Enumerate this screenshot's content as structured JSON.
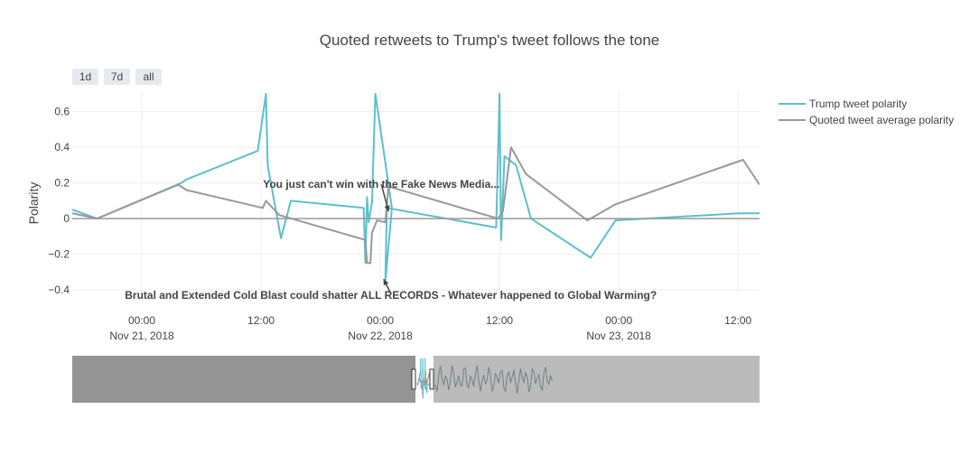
{
  "chart_data": {
    "type": "line",
    "title": "Quoted retweets to Trump's tweet follows the tone",
    "ylabel": "Polarity",
    "xlabel": "",
    "ylim": [
      -0.42,
      0.72
    ],
    "xlim": [
      "2018-11-20 17:00",
      "2018-11-23 14:10"
    ],
    "grid": true,
    "legend_position": "top-right",
    "range_buttons": [
      "1d",
      "7d",
      "all"
    ],
    "y_ticks": [
      {
        "value": 0.6,
        "label": "0.6"
      },
      {
        "value": 0.4,
        "label": "0.4"
      },
      {
        "value": 0.2,
        "label": "0.2"
      },
      {
        "value": 0,
        "label": "0"
      },
      {
        "value": -0.2,
        "label": "−0.2"
      },
      {
        "value": -0.4,
        "label": "−0.4"
      }
    ],
    "x_ticks": [
      {
        "value": "2018-11-21 00:00",
        "time": "00:00",
        "date": "Nov 21, 2018"
      },
      {
        "value": "2018-11-21 12:00",
        "time": "12:00",
        "date": ""
      },
      {
        "value": "2018-11-22 00:00",
        "time": "00:00",
        "date": "Nov 22, 2018"
      },
      {
        "value": "2018-11-22 12:00",
        "time": "12:00",
        "date": ""
      },
      {
        "value": "2018-11-23 00:00",
        "time": "00:00",
        "date": "Nov 23, 2018"
      },
      {
        "value": "2018-11-23 12:00",
        "time": "12:00",
        "date": ""
      }
    ],
    "series": [
      {
        "name": "Trump tweet polarity",
        "color": "#5bc0cf",
        "points": [
          [
            "2018-11-20 17:00",
            0.05
          ],
          [
            "2018-11-20 19:30",
            0.0
          ],
          [
            "2018-11-21 04:00",
            0.2
          ],
          [
            "2018-11-21 04:30",
            0.22
          ],
          [
            "2018-11-21 11:40",
            0.38
          ],
          [
            "2018-11-21 12:30",
            0.7
          ],
          [
            "2018-11-21 12:40",
            0.3
          ],
          [
            "2018-11-21 14:00",
            -0.11
          ],
          [
            "2018-11-21 15:00",
            0.1
          ],
          [
            "2018-11-21 22:20",
            0.06
          ],
          [
            "2018-11-21 22:30",
            -0.25
          ],
          [
            "2018-11-21 22:40",
            0.12
          ],
          [
            "2018-11-21 22:50",
            -0.02
          ],
          [
            "2018-11-21 23:10",
            0.09
          ],
          [
            "2018-11-21 23:30",
            0.7
          ],
          [
            "2018-11-22 01:10",
            0.06
          ],
          [
            "2018-11-22 00:30",
            -0.36
          ],
          [
            "2018-11-22 00:40",
            0.06
          ],
          [
            "2018-11-22 11:40",
            -0.05
          ],
          [
            "2018-11-22 12:00",
            0.7
          ],
          [
            "2018-11-22 12:10",
            -0.12
          ],
          [
            "2018-11-22 12:30",
            0.35
          ],
          [
            "2018-11-22 13:40",
            0.3
          ],
          [
            "2018-11-22 15:10",
            0.0
          ],
          [
            "2018-11-22 21:10",
            -0.22
          ],
          [
            "2018-11-22 23:40",
            -0.01
          ],
          [
            "2018-11-23 12:10",
            0.03
          ],
          [
            "2018-11-23 14:10",
            0.03
          ]
        ]
      },
      {
        "name": "Quoted tweet average polarity",
        "color": "#999999",
        "points": [
          [
            "2018-11-20 17:00",
            0.03
          ],
          [
            "2018-11-20 19:30",
            0.0
          ],
          [
            "2018-11-21 03:40",
            0.19
          ],
          [
            "2018-11-21 04:30",
            0.16
          ],
          [
            "2018-11-21 12:10",
            0.06
          ],
          [
            "2018-11-21 12:30",
            0.1
          ],
          [
            "2018-11-21 13:50",
            0.02
          ],
          [
            "2018-11-21 22:30",
            -0.12
          ],
          [
            "2018-11-21 22:40",
            -0.25
          ],
          [
            "2018-11-21 23:00",
            -0.25
          ],
          [
            "2018-11-21 23:10",
            -0.08
          ],
          [
            "2018-11-21 23:40",
            -0.01
          ],
          [
            "2018-11-22 00:30",
            -0.02
          ],
          [
            "2018-11-22 00:50",
            0.18
          ],
          [
            "2018-11-22 11:50",
            0.0
          ],
          [
            "2018-11-22 12:20",
            0.04
          ],
          [
            "2018-11-22 13:10",
            0.4
          ],
          [
            "2018-11-22 14:40",
            0.25
          ],
          [
            "2018-11-22 20:50",
            -0.01
          ],
          [
            "2018-11-22 23:40",
            0.08
          ],
          [
            "2018-11-23 12:30",
            0.33
          ],
          [
            "2018-11-23 14:10",
            0.19
          ]
        ]
      },
      {
        "name": "",
        "color": "#999999",
        "points": [
          [
            "2018-11-20 17:00",
            0.0
          ],
          [
            "2018-11-23 14:10",
            0.0
          ]
        ]
      }
    ],
    "annotations": [
      {
        "text": "You just can't win with the Fake News Media...",
        "x": "2018-11-22 00:50",
        "y": 0.04
      },
      {
        "text": "Brutal and Extended Cold Blast could shatter ALL RECORDS - Whatever happened to Global Warming?",
        "x": "2018-11-22 00:20",
        "y": -0.34
      }
    ]
  }
}
